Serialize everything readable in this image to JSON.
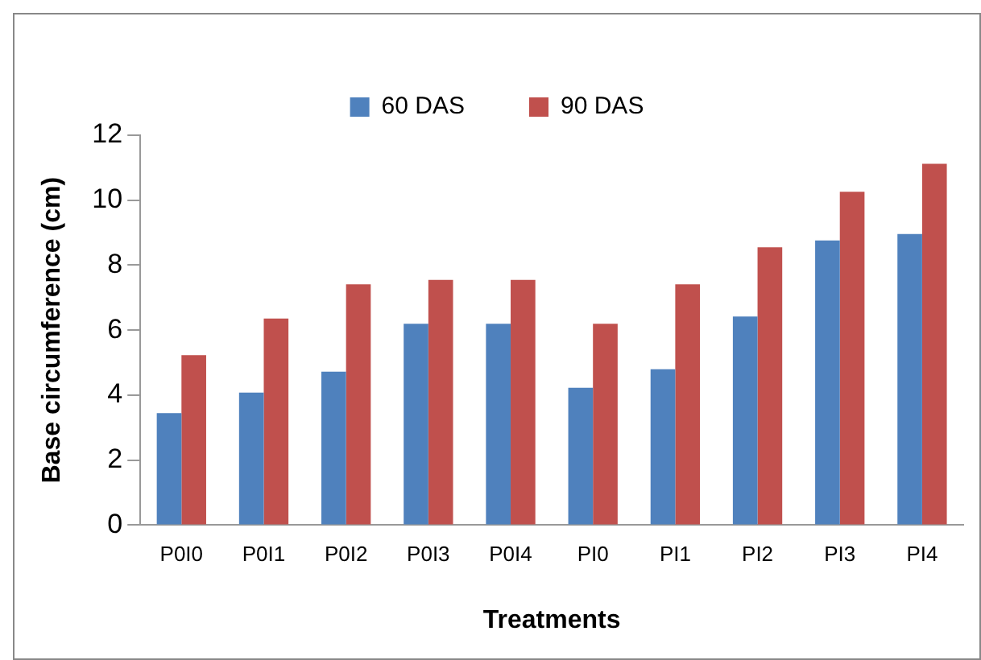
{
  "chart_data": {
    "type": "bar",
    "xlabel": "Treatments",
    "ylabel": "Base circumference (cm)",
    "categories": [
      "P0I0",
      "P0I1",
      "P0I2",
      "P0I3",
      "P0I4",
      "PI0",
      "PI1",
      "PI2",
      "PI3",
      "PI4"
    ],
    "series": [
      {
        "name": "60 DAS",
        "color": "#4f81bd",
        "values": [
          3.45,
          4.08,
          4.72,
          6.2,
          6.2,
          4.23,
          4.8,
          6.42,
          8.76,
          8.96
        ]
      },
      {
        "name": "90 DAS",
        "color": "#c0504d",
        "values": [
          5.23,
          6.36,
          7.41,
          7.55,
          7.55,
          6.2,
          7.41,
          8.55,
          10.26,
          11.12
        ]
      }
    ],
    "ylim": [
      0,
      12
    ],
    "yticks": [
      0,
      2,
      4,
      6,
      8,
      10,
      12
    ],
    "grid": false,
    "legend": "top"
  }
}
